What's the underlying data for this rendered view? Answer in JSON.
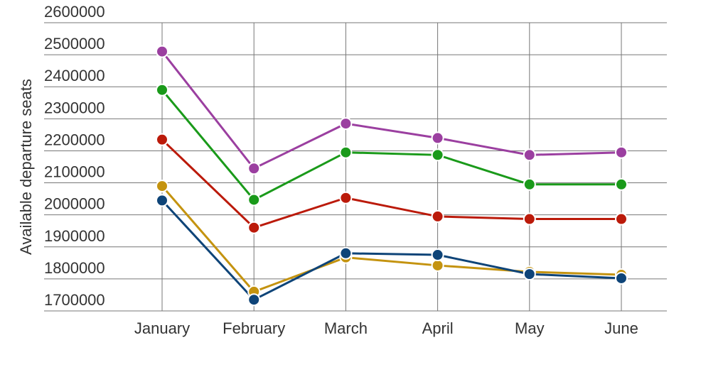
{
  "chart_data": {
    "type": "line",
    "y_label": "Available departure seats",
    "categories": [
      "January",
      "February",
      "March",
      "April",
      "May",
      "June"
    ],
    "series": [
      {
        "color": "#9b3fa0",
        "values": [
          2510000,
          2145000,
          2285000,
          2240000,
          2187000,
          2195000
        ]
      },
      {
        "color": "#1a9a1a",
        "values": [
          2390000,
          2047000,
          2195000,
          2187000,
          2095000,
          2095000
        ]
      },
      {
        "color": "#bb1a0a",
        "values": [
          2235000,
          1960000,
          2053000,
          1995000,
          1987000,
          1987000
        ]
      },
      {
        "color": "#c4930f",
        "values": [
          2090000,
          1760000,
          1867000,
          1842000,
          1822000,
          1813000
        ]
      },
      {
        "color": "#0e4478",
        "values": [
          2045000,
          1735000,
          1880000,
          1875000,
          1815000,
          1802000
        ]
      }
    ],
    "ylim": [
      1700000,
      2600000
    ],
    "yticks": [
      1700000,
      1800000,
      1900000,
      2000000,
      2100000,
      2200000,
      2300000,
      2400000,
      2500000,
      2600000
    ],
    "grid": true
  }
}
